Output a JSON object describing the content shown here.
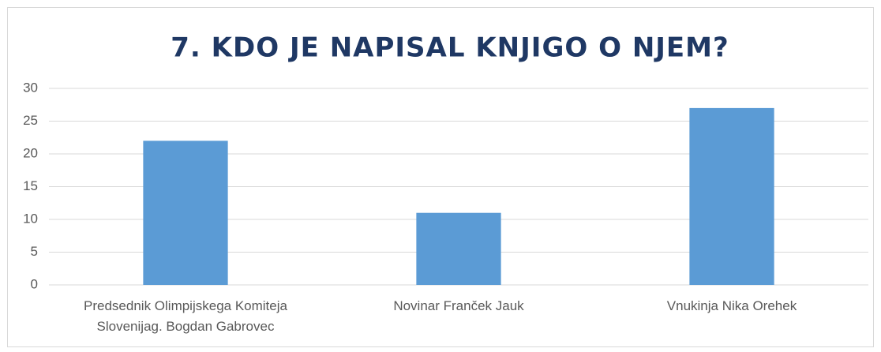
{
  "chart_data": {
    "type": "bar",
    "title": "7. KDO JE NAPISAL KNJIGO O NJEM?",
    "categories": [
      "Predsednik Olimpijskega Komiteja Slovenijag. Bogdan Gabrovec",
      "Novinar Franček Jauk",
      "Vnukinja Nika Orehek"
    ],
    "values": [
      22,
      11,
      27
    ],
    "color": "#5b9bd5",
    "ylim": [
      0,
      30
    ],
    "yticks": [
      0,
      5,
      10,
      15,
      20,
      25,
      30
    ],
    "grid": true
  }
}
